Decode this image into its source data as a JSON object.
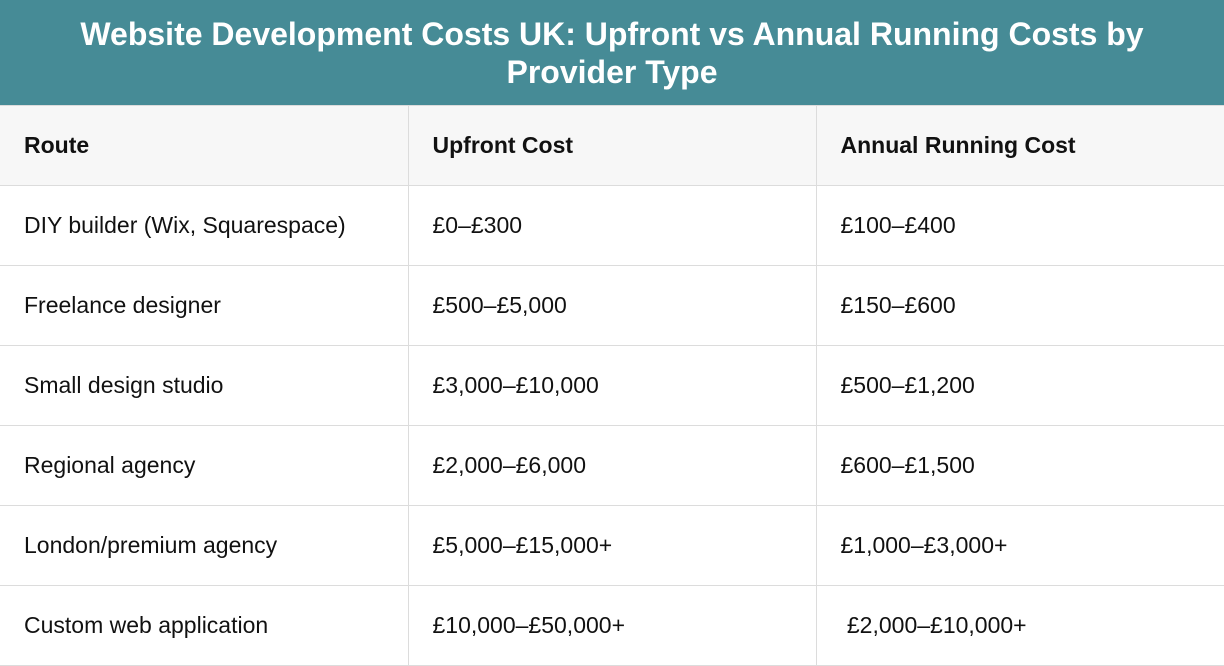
{
  "header": {
    "title": "Website Development Costs UK: Upfront vs Annual Running Costs by Provider Type"
  },
  "table": {
    "columns": [
      "Route",
      "Upfront Cost",
      "Annual Running Cost"
    ],
    "rows": [
      [
        "DIY builder (Wix, Squarespace)",
        "£0–£300",
        "£100–£400"
      ],
      [
        "Freelance designer",
        "£500–£5,000",
        "£150–£600"
      ],
      [
        "Small design studio",
        "£3,000–£10,000",
        "£500–£1,200"
      ],
      [
        "Regional agency",
        "£2,000–£6,000",
        "£600–£1,500"
      ],
      [
        "London/premium agency",
        "£5,000–£15,000+",
        "£1,000–£3,000+"
      ],
      [
        "Custom web application",
        "£10,000–£50,000+",
        " £2,000–£10,000+"
      ]
    ]
  }
}
